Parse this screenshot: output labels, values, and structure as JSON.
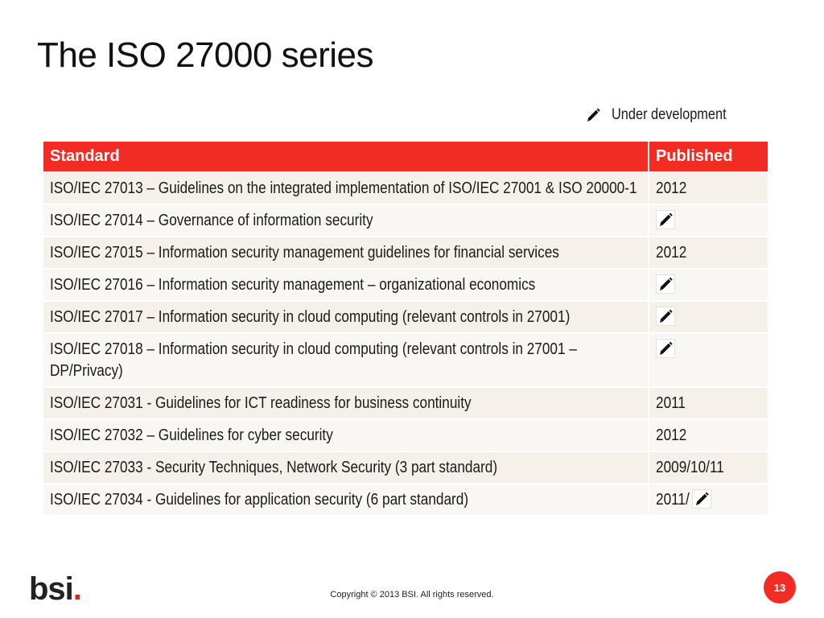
{
  "slide": {
    "title": "The ISO 27000 series"
  },
  "legend": {
    "icon": "pencil-icon",
    "label": "Under development"
  },
  "table": {
    "headers": [
      "Standard",
      "Published"
    ],
    "rows": [
      {
        "standard": "ISO/IEC 27013 – Guidelines on the integrated implementation of ISO/IEC 27001 & ISO 20000-1",
        "published": "2012",
        "under_development": false
      },
      {
        "standard": "ISO/IEC 27014 – Governance of information security",
        "published": "",
        "under_development": true
      },
      {
        "standard": "ISO/IEC 27015 – Information security management guidelines for financial services",
        "published": "2012",
        "under_development": false
      },
      {
        "standard": "ISO/IEC 27016 – Information security management – organizational economics",
        "published": "",
        "under_development": true
      },
      {
        "standard": "ISO/IEC 27017 – Information security in cloud computing (relevant controls in 27001)",
        "published": "",
        "under_development": true
      },
      {
        "standard": "ISO/IEC 27018 – Information security in cloud computing (relevant controls in 27001 – DP/Privacy)",
        "published": "",
        "under_development": true
      },
      {
        "standard": "ISO/IEC 27031 - Guidelines for ICT readiness for business continuity",
        "published": "2011",
        "under_development": false
      },
      {
        "standard": "ISO/IEC 27032 – Guidelines for cyber security",
        "published": "2012",
        "under_development": false
      },
      {
        "standard": "ISO/IEC 27033 - Security Techniques, Network Security (3 part standard)",
        "published": "2009/10/11",
        "under_development": false
      },
      {
        "standard": "ISO/IEC 27034 - Guidelines for application security (6 part standard)",
        "published": "2011/",
        "under_development": true
      }
    ]
  },
  "footer": {
    "logo_text": "bsi",
    "logo_dot": ".",
    "copyright": "Copyright © 2013 BSI. All rights reserved.",
    "page_number": "13"
  },
  "colors": {
    "accent": "#f22b25",
    "row_odd": "#f5f1ea",
    "row_even": "#f9f7f3"
  }
}
